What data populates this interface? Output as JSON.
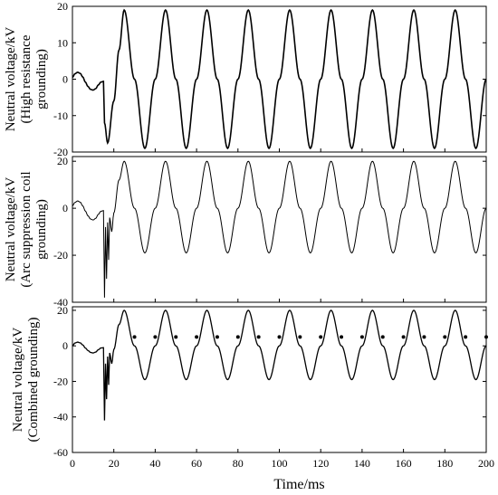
{
  "chart_data": [
    {
      "type": "line",
      "ylabel_lines": [
        "Neutral voltage/kV",
        "(High resistance",
        "grounding)"
      ],
      "xlim": [
        0,
        200
      ],
      "ylim": [
        -20,
        20
      ],
      "yticks": [
        -20,
        -10,
        0,
        10,
        20
      ],
      "ytick_labels": [
        "-20",
        "-10",
        "0",
        "10",
        "20"
      ],
      "series": [
        {
          "x": [
            0,
            1.25,
            2.5,
            3.75,
            5,
            6.25,
            7.5,
            8.75,
            10,
            11.25,
            12.5,
            13.75,
            15,
            15.5,
            17,
            20,
            22.5,
            25,
            30,
            35,
            40,
            45,
            50,
            55,
            60,
            65,
            70,
            75,
            80,
            85,
            90,
            95,
            100,
            105,
            110,
            115,
            120,
            125,
            130,
            135,
            140,
            145,
            150,
            155,
            160,
            165,
            170,
            175,
            180,
            185,
            190,
            195,
            200
          ],
          "y": [
            0.5,
            1.5,
            1.9,
            1.6,
            0.6,
            -0.8,
            -2.0,
            -2.8,
            -3.0,
            -2.6,
            -1.6,
            -0.8,
            -0.6,
            -12,
            -17.5,
            -6,
            8,
            19,
            0,
            -19,
            0,
            19,
            0,
            -19,
            0,
            19,
            0,
            -19,
            0,
            19,
            0,
            -19,
            0,
            19,
            0,
            -19,
            0,
            19,
            0,
            -19,
            0,
            19,
            0,
            -19,
            0,
            19,
            0,
            -19,
            0,
            19,
            0,
            -19,
            0
          ]
        }
      ]
    },
    {
      "type": "line",
      "ylabel_lines": [
        "Neutral voltage/kV",
        "(Arc suppression coil",
        "grounding)"
      ],
      "xlim": [
        0,
        200
      ],
      "ylim": [
        -40,
        22
      ],
      "yticks": [
        -40,
        -20,
        0,
        20
      ],
      "ytick_labels": [
        "-40",
        "-20",
        "0",
        "20"
      ],
      "series": [
        {
          "x": [
            0,
            1.25,
            2.5,
            3.75,
            5,
            6.25,
            7.5,
            8.75,
            10,
            11.25,
            12.5,
            13.75,
            15,
            15.5,
            16,
            16.5,
            17,
            17.5,
            18,
            19,
            20,
            22.5,
            25,
            30,
            35,
            40,
            45,
            50,
            55,
            60,
            65,
            70,
            75,
            80,
            85,
            90,
            95,
            100,
            105,
            110,
            115,
            120,
            125,
            130,
            135,
            140,
            145,
            150,
            155,
            160,
            165,
            170,
            175,
            180,
            185,
            190,
            195,
            200
          ],
          "y": [
            1,
            2.5,
            3.1,
            2.6,
            1,
            -1.2,
            -3.2,
            -4.6,
            -5,
            -4.3,
            -2.6,
            -1.3,
            -1,
            -38,
            -8,
            -30,
            -6,
            -22,
            -4,
            -10,
            -2,
            12,
            20,
            0,
            -19,
            0,
            20,
            0,
            -19,
            0,
            20,
            0,
            -19,
            0,
            20,
            0,
            -19,
            0,
            20,
            0,
            -19,
            0,
            20,
            0,
            -19,
            0,
            20,
            0,
            -19,
            0,
            20,
            0,
            -19,
            0,
            20,
            0,
            -19,
            0
          ]
        }
      ]
    },
    {
      "type": "line",
      "ylabel_lines": [
        "Neutral voltage/kV",
        "(Combined grounding)"
      ],
      "xlabel": "Time/ms",
      "xlim": [
        0,
        200
      ],
      "ylim": [
        -60,
        22
      ],
      "xticks": [
        0,
        20,
        40,
        60,
        80,
        100,
        120,
        140,
        160,
        180,
        200
      ],
      "xtick_labels": [
        "0",
        "20",
        "40",
        "60",
        "80",
        "100",
        "120",
        "140",
        "160",
        "180",
        "200"
      ],
      "yticks": [
        -60,
        -40,
        -20,
        0,
        20
      ],
      "ytick_labels": [
        "-60",
        "-40",
        "-20",
        "0",
        "20"
      ],
      "series": [
        {
          "x": [
            0,
            1.25,
            2.5,
            3.75,
            5,
            6.25,
            7.5,
            8.75,
            10,
            11.25,
            12.5,
            13.75,
            15,
            15.5,
            16,
            16.5,
            17,
            17.5,
            18,
            19,
            20,
            22.5,
            25,
            30,
            35,
            40,
            45,
            50,
            55,
            60,
            65,
            70,
            75,
            80,
            85,
            90,
            95,
            100,
            105,
            110,
            115,
            120,
            125,
            130,
            135,
            140,
            145,
            150,
            155,
            160,
            165,
            170,
            175,
            180,
            185,
            190,
            195,
            200
          ],
          "y": [
            0,
            1.6,
            2.1,
            1.7,
            0.5,
            -1.2,
            -2.6,
            -3.7,
            -4,
            -3.5,
            -2.2,
            -1.2,
            -1,
            -42,
            -10,
            -30,
            -6,
            -22,
            -4,
            -10,
            -2,
            12,
            20,
            0,
            -19,
            0,
            20,
            0,
            -19,
            0,
            20,
            0,
            -19,
            0,
            20,
            0,
            -19,
            0,
            20,
            0,
            -19,
            0,
            20,
            0,
            -19,
            0,
            20,
            0,
            -19,
            0,
            20,
            0,
            -19,
            0,
            20,
            0,
            -19,
            0
          ]
        }
      ]
    }
  ]
}
